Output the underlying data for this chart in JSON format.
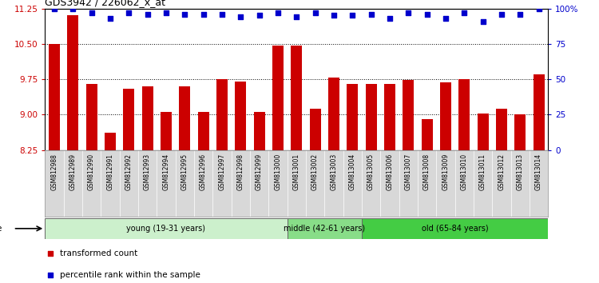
{
  "title": "GDS3942 / 226062_x_at",
  "samples": [
    "GSM812988",
    "GSM812989",
    "GSM812990",
    "GSM812991",
    "GSM812992",
    "GSM812993",
    "GSM812994",
    "GSM812995",
    "GSM812996",
    "GSM812997",
    "GSM812998",
    "GSM812999",
    "GSM813000",
    "GSM813001",
    "GSM813002",
    "GSM813003",
    "GSM813004",
    "GSM813005",
    "GSM813006",
    "GSM813007",
    "GSM813008",
    "GSM813009",
    "GSM813010",
    "GSM813011",
    "GSM813012",
    "GSM813013",
    "GSM813014"
  ],
  "bar_values": [
    10.5,
    11.1,
    9.65,
    8.62,
    9.55,
    9.6,
    9.05,
    9.6,
    9.05,
    9.75,
    9.7,
    9.05,
    10.47,
    10.47,
    9.12,
    9.78,
    9.65,
    9.65,
    9.65,
    9.73,
    8.9,
    9.68,
    9.75,
    9.02,
    9.12,
    9.0,
    9.85
  ],
  "percentile_values": [
    100,
    100,
    97,
    93,
    97,
    96,
    97,
    96,
    96,
    96,
    94,
    95,
    97,
    94,
    97,
    95,
    95,
    96,
    93,
    97,
    96,
    93,
    97,
    91,
    96,
    96,
    100
  ],
  "groups": [
    {
      "label": "young (19-31 years)",
      "start": 0,
      "end": 13,
      "color": "#ccf0cc"
    },
    {
      "label": "middle (42-61 years)",
      "start": 13,
      "end": 17,
      "color": "#88dd88"
    },
    {
      "label": "old (65-84 years)",
      "start": 17,
      "end": 27,
      "color": "#44cc44"
    }
  ],
  "bar_color": "#cc0000",
  "percentile_color": "#0000cc",
  "ylim_left": [
    8.25,
    11.25
  ],
  "ylim_right": [
    0,
    100
  ],
  "yticks_left": [
    8.25,
    9.0,
    9.75,
    10.5,
    11.25
  ],
  "yticks_right": [
    0,
    25,
    50,
    75,
    100
  ],
  "grid_lines": [
    9.0,
    9.75,
    10.5
  ],
  "legend_items": [
    {
      "label": "transformed count",
      "color": "#cc0000",
      "marker": "s"
    },
    {
      "label": "percentile rank within the sample",
      "color": "#0000cc",
      "marker": "s"
    }
  ]
}
